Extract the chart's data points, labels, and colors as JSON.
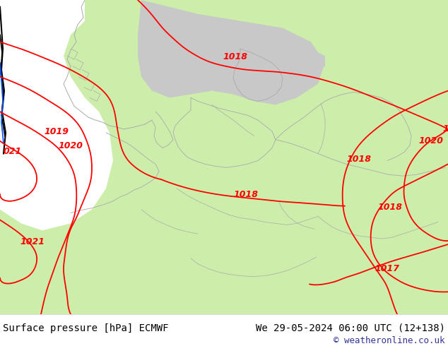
{
  "title_left": "Surface pressure [hPa] ECMWF",
  "title_right": "We 29-05-2024 06:00 UTC (12+138)",
  "copyright": "© weatheronline.co.uk",
  "bg_land_color": "#cceeaa",
  "bg_sea_color": "#d8d8d8",
  "baltic_sea_color": "#c8c8c8",
  "isobar_color": "#ff0000",
  "border_color": "#aaaaaa",
  "black_line_color": "#000000",
  "blue_line_color": "#0055ff",
  "bottom_bar_color": "#ffffff",
  "text_color": "#000000",
  "copyright_color": "#333399",
  "font_size_bottom": 10,
  "font_size_label": 9
}
